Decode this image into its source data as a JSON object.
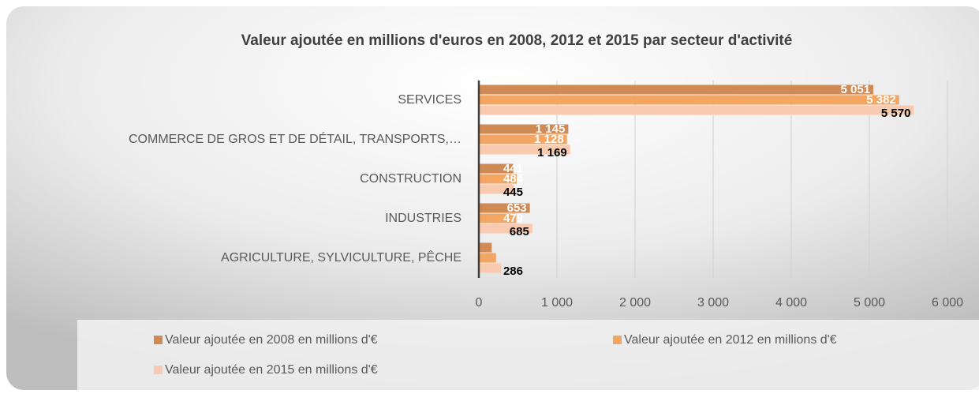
{
  "chart_data": {
    "type": "hbar",
    "title": "Valeur ajoutée en millions d'euros en 2008, 2012 et 2015 par secteur d'activité",
    "categories": [
      "SERVICES",
      "COMMERCE DE GROS ET DE DÉTAIL, TRANSPORTS,…",
      "CONSTRUCTION",
      "INDUSTRIES",
      "AGRICULTURE, SYLVICULTURE, PÊCHE"
    ],
    "series": [
      {
        "name": "Valeur ajoutée en 2008 en millions d'€",
        "color": "#cf8a55",
        "values": [
          5051,
          1145,
          441,
          653,
          165
        ],
        "value_labels": [
          "5 051",
          "1 145",
          "441",
          "653",
          null
        ]
      },
      {
        "name": "Valeur ajoutée en 2012 en millions d'€",
        "color": "#f3a561",
        "values": [
          5382,
          1128,
          484,
          479,
          220
        ],
        "value_labels": [
          "5 382",
          "1 128",
          "484",
          "479",
          null
        ]
      },
      {
        "name": "Valeur ajoutée en 2015 en millions d'€",
        "color": "#f8cbb1",
        "values": [
          5570,
          1169,
          445,
          685,
          286
        ],
        "value_labels": [
          "5 570",
          "1 169",
          "445",
          "685",
          "286"
        ]
      }
    ],
    "xlim": [
      0,
      6000
    ],
    "xticks": [
      0,
      {
        "value": 1000,
        "label": "1 000"
      },
      {
        "value": 2000,
        "label": "2 000"
      },
      {
        "value": 3000,
        "label": "3 000"
      },
      {
        "value": 4000,
        "label": "4 000"
      },
      {
        "value": 5000,
        "label": "5 000"
      },
      {
        "value": 6000,
        "label": "6 000"
      }
    ],
    "grid": true,
    "legend": "bottom"
  }
}
